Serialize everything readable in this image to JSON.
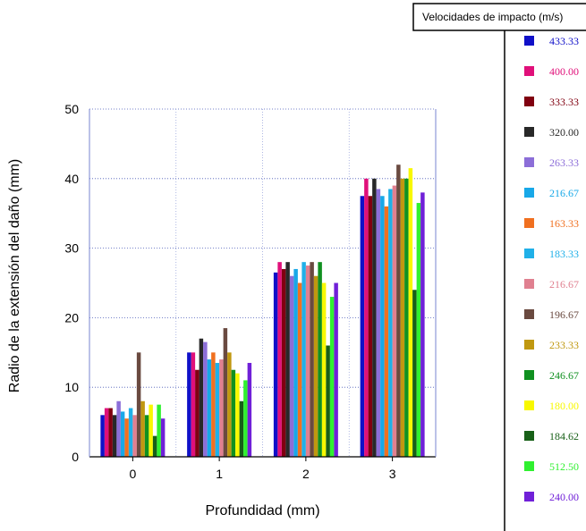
{
  "chart_data": {
    "type": "bar",
    "xlabel": "Profundidad (mm)",
    "ylabel": "Radio de la extensión del daño (mm)",
    "categories": [
      "0",
      "1",
      "2",
      "3"
    ],
    "ylim": [
      0,
      50
    ],
    "yticks": [
      "0",
      "10",
      "20",
      "30",
      "40",
      "50"
    ],
    "grid": true,
    "legend_title": "Velocidades de impacto (m/s)",
    "legend_position": "right",
    "series": [
      {
        "name": "433.33",
        "color": "#1010c8",
        "values": [
          6,
          15,
          26.5,
          37.5
        ]
      },
      {
        "name": "400.00",
        "color": "#e0107a",
        "values": [
          7,
          15,
          28,
          40
        ]
      },
      {
        "name": "333.33",
        "color": "#800010",
        "values": [
          7,
          12.5,
          27,
          37.5
        ]
      },
      {
        "name": "320.00",
        "color": "#282828",
        "values": [
          6,
          17,
          28,
          40
        ]
      },
      {
        "name": "263.33",
        "color": "#8c6ed8",
        "values": [
          8,
          16.5,
          26,
          38.5
        ]
      },
      {
        "name": "216.67",
        "color": "#18a8e8",
        "values": [
          6.5,
          14,
          27,
          37.5
        ]
      },
      {
        "name": "163.33",
        "color": "#f07020",
        "values": [
          5.5,
          15,
          25,
          36
        ]
      },
      {
        "name": "183.33",
        "color": "#20b0e8",
        "values": [
          7,
          13.5,
          28,
          38.5
        ]
      },
      {
        "name": "216.67",
        "color": "#e08090",
        "values": [
          6,
          14,
          27.5,
          39
        ]
      },
      {
        "name": "196.67",
        "color": "#6a4a40",
        "values": [
          15,
          18.5,
          28,
          42
        ]
      },
      {
        "name": "233.33",
        "color": "#c09810",
        "values": [
          8,
          15,
          26,
          40
        ]
      },
      {
        "name": "246.67",
        "color": "#109020",
        "values": [
          6,
          12.5,
          28,
          40
        ]
      },
      {
        "name": "180.00",
        "color": "#f8f800",
        "values": [
          7.5,
          12,
          25,
          41.5
        ]
      },
      {
        "name": "184.62",
        "color": "#186018",
        "values": [
          3,
          8,
          16,
          24
        ]
      },
      {
        "name": "512.50",
        "color": "#30f030",
        "values": [
          7.5,
          11,
          23,
          36.5
        ]
      },
      {
        "name": "240.00",
        "color": "#7020d8",
        "values": [
          5.5,
          13.5,
          25,
          38
        ]
      }
    ]
  }
}
